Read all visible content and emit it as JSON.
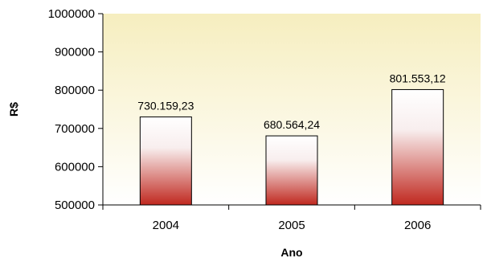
{
  "chart_data": {
    "type": "bar",
    "title": "",
    "xlabel": "Ano",
    "ylabel": "R$",
    "categories": [
      "2004",
      "2005",
      "2006"
    ],
    "values": [
      730159.23,
      680564.24,
      801553.12
    ],
    "data_labels": [
      "730.159,23",
      "680.564,24",
      "801.553,12"
    ],
    "y_ticks": [
      500000,
      600000,
      700000,
      800000,
      900000,
      1000000
    ],
    "y_tick_labels": [
      "500000",
      "600000",
      "700000",
      "800000",
      "900000",
      "1000000"
    ],
    "ylim": [
      500000,
      1000000
    ],
    "grid": false,
    "legend": "none",
    "colors": {
      "plot_bg_top": "#f6eebf",
      "plot_bg_bottom": "#ffffff",
      "bar_top": "#ffffff",
      "bar_bottom": "#c0281f",
      "bar_border": "#000000"
    }
  }
}
